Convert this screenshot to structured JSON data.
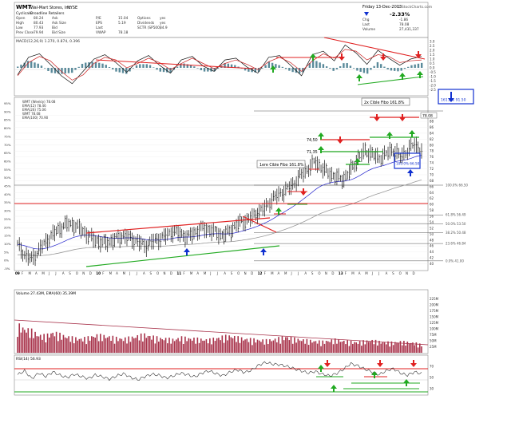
{
  "header": {
    "symbol": "WMT",
    "company": "Wal-Mart Stores, Inc.",
    "exchange": "NYSE",
    "sector": "Cyclicals",
    "industry": "Broadline Retailers",
    "date": "Friday 13-Dec-2013",
    "change_pct": "-2.33%",
    "source": "© StockCharts.com",
    "stats": [
      {
        "label": "Open",
        "value": "80.24"
      },
      {
        "label": "High",
        "value": "80.43"
      },
      {
        "label": "Low",
        "value": "77.93"
      },
      {
        "label": "Prev Close",
        "value": "79.94"
      },
      {
        "label": "Ask",
        "value": ""
      },
      {
        "label": "Ask Size",
        "value": ""
      },
      {
        "label": "Bid",
        "value": ""
      },
      {
        "label": "Bid Size",
        "value": ""
      },
      {
        "label": "P/E",
        "value": "15.04"
      },
      {
        "label": "EPS",
        "value": "5.19"
      },
      {
        "label": "Last",
        "value": ""
      },
      {
        "label": "VWAP",
        "value": "78.18"
      },
      {
        "label": "Options",
        "value": "yes"
      },
      {
        "label": "Dividends",
        "value": "yes"
      },
      {
        "label": "SCTR (SP500)",
        "value": "34.9"
      },
      {
        "label": "Chg",
        "value": "-1.86"
      },
      {
        "label": "Last",
        "value": "78.08"
      },
      {
        "label": "Volume",
        "value": "27,431,337"
      }
    ]
  },
  "colors": {
    "price_bars": "#111111",
    "ma_short": "#2222cc",
    "ma_long": "#999999",
    "trend_red": "#e02020",
    "trend_green": "#22aa22",
    "highlight_blue": "#1030d0",
    "volume_bars": "#a8324a",
    "macd_histogram": "#5a8a9a"
  },
  "panels": {
    "macd_legend": "MACD(12,26,9) 1.270, 0.874, 0.396",
    "price_legend": [
      "WMT (Weekly) 78.08",
      "EMA(12) 78.46",
      "EMA(26) 75.06",
      "WMT 78.08",
      "EMA(100) 70.90"
    ],
    "volume_legend": "Volume 27.43M, EMA(60) 35.39M",
    "rsi_legend": "RSI(14) 56.93"
  },
  "annotations": {
    "fibo_2x": "2x Cible Fibo 161.8%",
    "fibo_1x": "1ere Cible Fibo 161.8%",
    "label_7450": "74,50",
    "label_7135": "71,35",
    "price_tag": "78.08",
    "box_upper": "161.8% 91.50",
    "box_lower": "100.0% 66.50"
  },
  "chart_data": [
    {
      "type": "line",
      "name": "MACD",
      "ylim": [
        -3,
        3
      ],
      "y_ticks": [
        "3.0",
        "2.5",
        "2.0",
        "1.5",
        "1.0",
        "0.5",
        "0.0",
        "-0.5",
        "-1.0",
        "-1.5",
        "-2.0",
        "-2.5"
      ],
      "series": [
        {
          "name": "MACD",
          "values": [
            -0.8,
            1.2,
            1.6,
            0.4,
            -0.9,
            -1.8,
            -0.4,
            1.0,
            1.5,
            0.6,
            -0.5,
            0.8,
            1.4,
            0.3,
            -0.6,
            0.9,
            1.3,
            0.2,
            -0.4,
            0.9,
            1.1,
            0.1,
            -0.6,
            1.2,
            1.4,
            0.3,
            -0.9,
            1.5,
            1.9,
            0.8,
            2.6,
            1.7,
            0.4,
            2.0,
            1.1,
            0.3,
            1.0,
            1.3
          ]
        },
        {
          "name": "Signal",
          "values": [
            -0.9,
            0.6,
            1.3,
            0.8,
            -0.4,
            -1.4,
            -0.8,
            0.5,
            1.2,
            0.9,
            0.0,
            0.5,
            1.1,
            0.6,
            -0.2,
            0.5,
            1.1,
            0.5,
            -0.1,
            0.5,
            0.9,
            0.4,
            -0.2,
            0.7,
            1.2,
            0.6,
            -0.4,
            0.8,
            1.6,
            1.1,
            2.1,
            1.9,
            0.9,
            1.5,
            1.3,
            0.6,
            0.8,
            0.9
          ]
        }
      ]
    },
    {
      "type": "bar",
      "name": "WMT (Weekly) price",
      "ylim": [
        38,
        95
      ],
      "y_ticks": [
        40,
        42,
        44,
        46,
        48,
        50,
        52,
        54,
        56,
        58,
        60,
        62,
        64,
        66,
        68,
        70,
        72,
        74,
        76,
        78,
        80,
        82,
        84,
        86,
        88,
        90
      ],
      "x_year_labels": [
        "09",
        "10",
        "11",
        "12",
        "13"
      ],
      "x_month_labels": [
        "F",
        "M",
        "A",
        "M",
        "J",
        "J",
        "A",
        "S",
        "O",
        "N",
        "D"
      ],
      "close": [
        46.5,
        43.0,
        41.5,
        44.5,
        47.5,
        50.0,
        52.0,
        53.5,
        53.0,
        51.5,
        49.5,
        48.0,
        47.0,
        47.5,
        48.5,
        49.5,
        48.5,
        47.5,
        46.0,
        47.5,
        48.5,
        49.5,
        51.0,
        50.0,
        49.0,
        50.5,
        52.0,
        51.5,
        50.5,
        49.5,
        51.0,
        53.5,
        54.5,
        55.5,
        57.5,
        59.0,
        62.0,
        63.5,
        65.0,
        67.0,
        70.0,
        72.0,
        74.5,
        72.0,
        70.5,
        69.0,
        68.5,
        71.5,
        75.5,
        78.0,
        77.0,
        75.5,
        77.0,
        78.5,
        76.0,
        78.0,
        80.5,
        78.08
      ],
      "left_axis_labels": [
        "95%",
        "90%",
        "85%",
        "80%",
        "75%",
        "70%",
        "65%",
        "60%",
        "55%",
        "50%",
        "45%",
        "40%",
        "35%",
        "30%",
        "25%",
        "20%",
        "15%",
        "10%",
        "5%",
        "0%",
        "-5%"
      ],
      "fib_levels": [
        {
          "label": "161.8% 91.50",
          "value": 91.5
        },
        {
          "label": "100.0% 66.50",
          "value": 66.5
        },
        {
          "label": "61.8% 56.49",
          "value": 56.49
        },
        {
          "label": "50.0% 53.50",
          "value": 53.5
        },
        {
          "label": "38.2% 50.48",
          "value": 50.48
        },
        {
          "label": "23.6% 46.84",
          "value": 46.84
        },
        {
          "label": "0.0% 41.00",
          "value": 41.0
        }
      ]
    },
    {
      "type": "bar",
      "name": "Volume",
      "y_ticks": [
        "225M",
        "200M",
        "175M",
        "150M",
        "125M",
        "100M",
        "75M",
        "50M",
        "25M"
      ],
      "series": [
        {
          "name": "Volume (M)",
          "values": [
            95,
            82,
            75,
            60,
            58,
            70,
            62,
            55,
            50,
            48,
            52,
            60,
            58,
            55,
            50,
            48,
            52,
            58,
            62,
            55,
            50,
            48,
            45,
            52,
            50,
            48,
            46,
            44,
            50,
            55,
            58,
            52,
            48,
            46,
            44,
            42,
            45,
            50,
            55,
            48,
            45,
            42,
            40,
            38,
            42,
            45,
            40,
            38,
            36,
            40,
            42,
            38,
            36,
            35,
            38,
            36,
            34,
            27.43
          ]
        }
      ]
    },
    {
      "type": "line",
      "name": "RSI(14)",
      "ylim": [
        20,
        80
      ],
      "y_ticks": [
        30,
        50,
        70
      ],
      "series": [
        {
          "name": "RSI",
          "values": [
            55,
            62,
            48,
            58,
            52,
            60,
            54,
            50,
            56,
            52,
            48,
            55,
            51,
            47,
            53,
            57,
            50,
            46,
            52,
            56,
            54,
            49,
            53,
            58,
            55,
            51,
            58,
            62,
            57,
            53,
            60,
            64,
            59,
            63,
            72,
            77,
            74,
            73,
            70,
            66,
            62,
            58,
            61,
            56,
            53,
            57,
            65,
            75,
            71,
            65,
            60,
            55,
            62,
            66,
            58,
            54,
            60,
            56.93
          ]
        }
      ]
    }
  ]
}
